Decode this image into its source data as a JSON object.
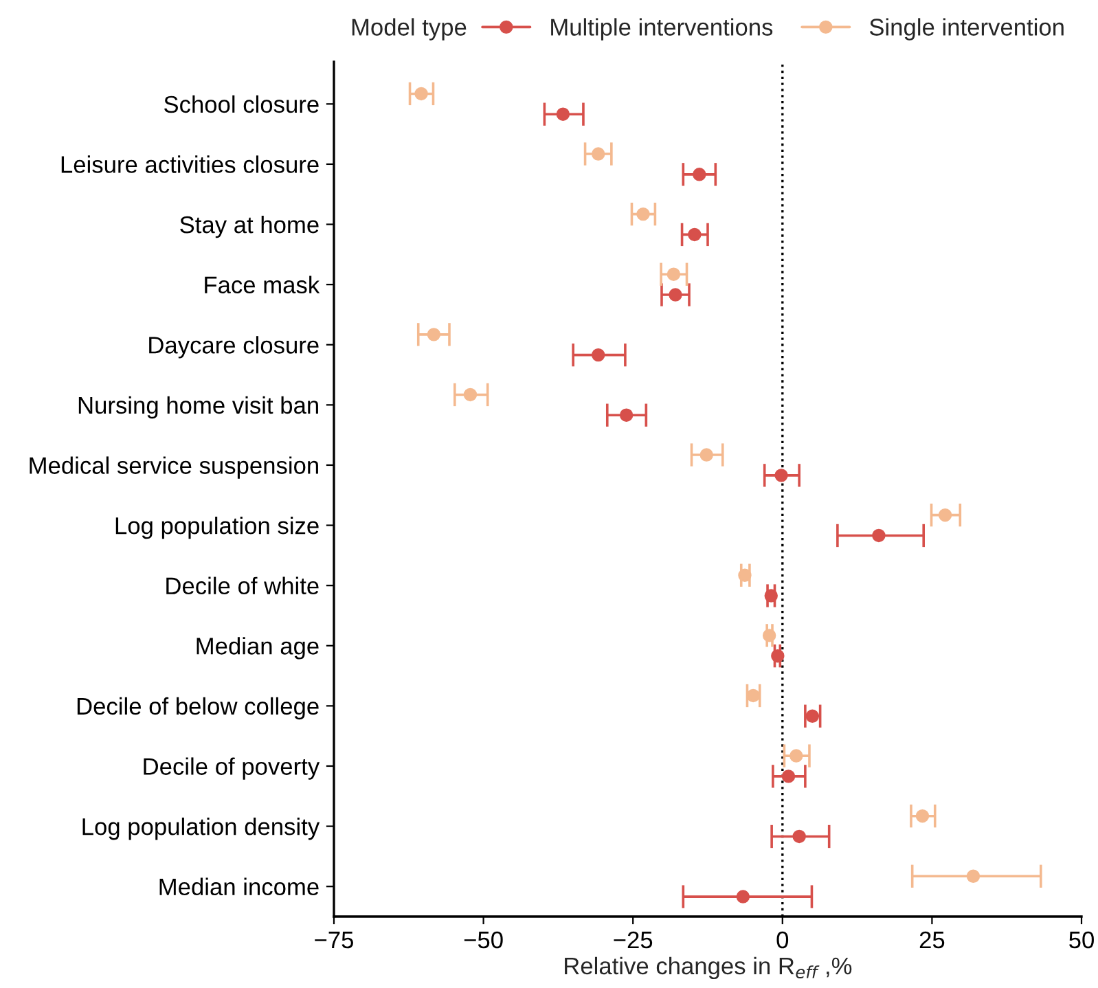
{
  "chart_data": {
    "type": "scatter",
    "orientation": "horizontal",
    "xlabel": "Relative changes in R$_{eff}$ ,%",
    "legend_title": "Model type",
    "legend": "top",
    "grid": false,
    "marker": "circle",
    "categories": [
      "School closure",
      "Leisure activities closure",
      "Stay at home",
      "Face mask",
      "Daycare closure",
      "Nursing home visit ban",
      "Medical service suspension",
      "Log population size",
      "Decile of white",
      "Median age",
      "Decile of below college",
      "Decile of poverty",
      "Log population density",
      "Median income"
    ],
    "xlim": [
      -75,
      50
    ],
    "xticks": [
      {
        "value": -75,
        "label": "−75"
      },
      {
        "value": -50,
        "label": "−50"
      },
      {
        "value": -25,
        "label": "−25"
      },
      0,
      25,
      50
    ],
    "ref_lines": [
      {
        "axis": "x",
        "value": 0,
        "color": "#000000",
        "line_style": "dotted"
      }
    ],
    "series": [
      {
        "name": "Multiple interventions",
        "color": "#d7504b",
        "values": [
          -36.7,
          -13.9,
          -14.7,
          -17.9,
          -30.8,
          -26.1,
          -0.2,
          16.1,
          -1.9,
          -0.8,
          5,
          1,
          2.8,
          -6.6
        ],
        "errors": [
          [
            -39.8,
            -33.3
          ],
          [
            -16.6,
            -11.2
          ],
          [
            -16.8,
            -12.5
          ],
          [
            -20.2,
            -15.6
          ],
          [
            -35,
            -26.3
          ],
          [
            -29.3,
            -22.8
          ],
          [
            -3,
            2.8
          ],
          [
            9.2,
            23.6
          ],
          [
            -2.5,
            -1.3
          ],
          [
            -1.3,
            -0.4
          ],
          [
            3.8,
            6.3
          ],
          [
            -1.6,
            3.8
          ],
          [
            -1.8,
            7.8
          ],
          [
            -16.6,
            4.9
          ]
        ]
      },
      {
        "name": "Single intervention",
        "color": "#f4b98f",
        "values": [
          -60.4,
          -30.8,
          -23.3,
          -18.2,
          -58.3,
          -52.2,
          -12.7,
          27.2,
          -6.3,
          -2.2,
          -4.9,
          2.3,
          23.4,
          31.9
        ],
        "errors": [
          [
            -62.3,
            -58.4
          ],
          [
            -33,
            -28.6
          ],
          [
            -25.2,
            -21.3
          ],
          [
            -20.3,
            -16
          ],
          [
            -60.9,
            -55.7
          ],
          [
            -54.8,
            -49.3
          ],
          [
            -15.2,
            -10
          ],
          [
            24.9,
            29.7
          ],
          [
            -6.9,
            -5.5
          ],
          [
            -2.6,
            -1.7
          ],
          [
            -5.9,
            -3.8
          ],
          [
            0.3,
            4.5
          ],
          [
            21.5,
            25.5
          ],
          [
            21.7,
            43.2
          ]
        ]
      }
    ]
  }
}
